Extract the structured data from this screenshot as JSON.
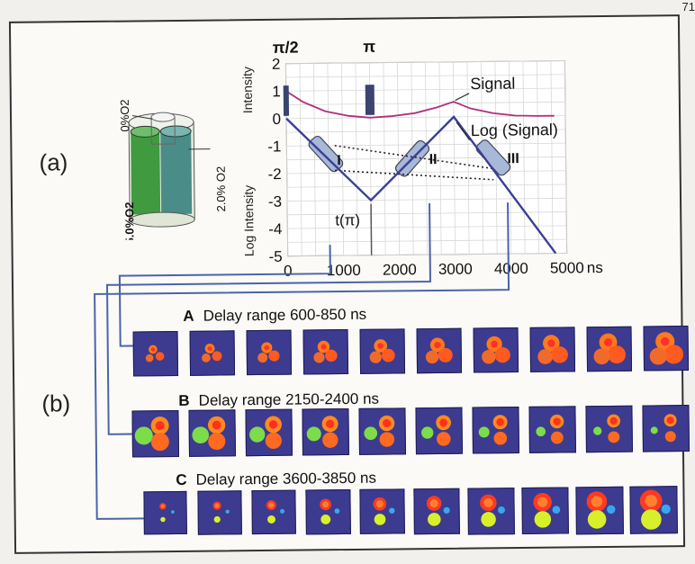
{
  "page_number": "71",
  "panel_a_label": "(a)",
  "panel_b_label": "(b)",
  "phantom": {
    "labels": [
      "0%O2",
      "2.0% O2",
      "5.0%O2"
    ]
  },
  "chart_data": {
    "type": "line",
    "x_ticks": [
      "0",
      "1000",
      "2000",
      "3000",
      "4000",
      "5000"
    ],
    "x_unit": "ns",
    "y_ticks_upper": [
      "2",
      "1",
      "0"
    ],
    "y_ticks_lower": [
      "-1",
      "-2",
      "-3",
      "-4",
      "-5"
    ],
    "ylabel_upper": "Intensity",
    "ylabel_lower": "Log Intensity",
    "pulse_labels": [
      "π/2",
      "π"
    ],
    "tpi_label": "t(π)",
    "window_labels": [
      "I",
      "II",
      "III"
    ],
    "series": [
      {
        "name": "Signal",
        "x": [
          0,
          300,
          700,
          1100,
          1500,
          1900,
          2300,
          2700,
          3000,
          3300,
          3700,
          4100,
          4500,
          4800
        ],
        "y": [
          1.0,
          0.6,
          0.25,
          0.08,
          0.0,
          0.05,
          0.15,
          0.35,
          0.55,
          0.3,
          0.12,
          0.02,
          0.0,
          0.0
        ]
      },
      {
        "name": "Log (Signal)",
        "x": [
          0,
          1500,
          3000,
          4800
        ],
        "y": [
          0,
          -3,
          0,
          -5
        ]
      }
    ],
    "grid": true,
    "xlim": [
      0,
      5000
    ]
  },
  "rows": [
    {
      "letter": "A",
      "title": "Delay range 600-850 ns"
    },
    {
      "letter": "B",
      "title": "Delay range 2150-2400 ns"
    },
    {
      "letter": "C",
      "title": "Delay range 3600-3850 ns"
    }
  ]
}
